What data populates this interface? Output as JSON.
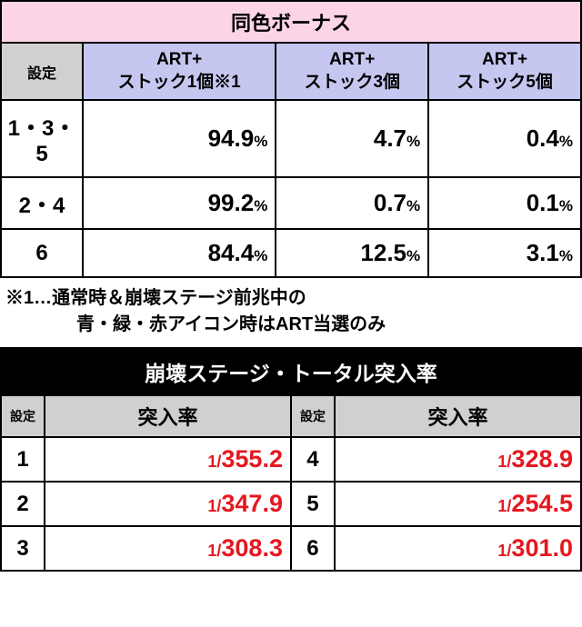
{
  "table1": {
    "title": "同色ボーナス",
    "settei_header": "設定",
    "columns": [
      "ART+\nストック1個※1",
      "ART+\nストック3個",
      "ART+\nストック5個"
    ],
    "rows": [
      {
        "label": "1・3・5",
        "values": [
          "94.9",
          "4.7",
          "0.4"
        ]
      },
      {
        "label": "2・4",
        "values": [
          "99.2",
          "0.7",
          "0.1"
        ]
      },
      {
        "label": "6",
        "values": [
          "84.4",
          "12.5",
          "3.1"
        ]
      }
    ],
    "percent_suffix": "%"
  },
  "footnote": {
    "line1": "※1…通常時＆崩壊ステージ前兆中の",
    "line2": "青・緑・赤アイコン時はART当選のみ"
  },
  "table2": {
    "title": "崩壊ステージ・トータル突入率",
    "settei_header": "設定",
    "rate_header": "突入率",
    "one_over": "1/",
    "left_rows": [
      {
        "label": "1",
        "value": "355.2"
      },
      {
        "label": "2",
        "value": "347.9"
      },
      {
        "label": "3",
        "value": "308.3"
      }
    ],
    "right_rows": [
      {
        "label": "4",
        "value": "328.9"
      },
      {
        "label": "5",
        "value": "254.5"
      },
      {
        "label": "6",
        "value": "301.0"
      }
    ]
  }
}
